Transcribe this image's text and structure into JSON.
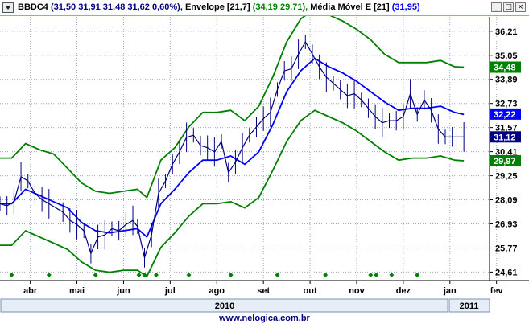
{
  "legend": {
    "ticker": "BBDC4",
    "quote": "(31,50  31,91  31,48  31,62  0,60%),",
    "envelope": "Envelope [21,7]",
    "envelope_vals": "(34,19  29,71),",
    "ma": "Média Móvel E [21]",
    "ma_vals": "(31,95)"
  },
  "window_buttons": {
    "minimize": "_",
    "maximize": "□",
    "close": "×"
  },
  "footer_url": "www.nelogica.com.br",
  "colors": {
    "price": "#000080",
    "envelope": "#008000",
    "ma": "#0000ff",
    "event_marker": "#008000",
    "current_price_badge": "#000080",
    "ma_badge": "#0000ff",
    "envelope_badge": "#008000"
  },
  "chart_data": {
    "type": "line",
    "grid": true,
    "y_ticks": [
      "36,21",
      "35,05",
      "33,89",
      "32,73",
      "31,57",
      "30,41",
      "29,25",
      "28,09",
      "26,93",
      "25,77",
      "24,61"
    ],
    "ylim": [
      24.2,
      36.9
    ],
    "x_months": [
      "abr",
      "mai",
      "jun",
      "jul",
      "ago",
      "set",
      "out",
      "nov",
      "dez",
      "jan",
      "fev"
    ],
    "x_month_pos": [
      1.0,
      2.0,
      3.0,
      4.0,
      5.0,
      6.0,
      7.0,
      8.0,
      9.0,
      10.0,
      11.0
    ],
    "xlim": [
      0.35,
      10.85
    ],
    "x_years": [
      "2010",
      "2011"
    ],
    "year_boundary": 9.97,
    "badges": [
      {
        "label": "34,48",
        "value": 34.48,
        "kind": "envelope"
      },
      {
        "label": "32,22",
        "value": 32.22,
        "kind": "ma"
      },
      {
        "label": "31,12",
        "value": 31.12,
        "kind": "price"
      },
      {
        "label": "29,97",
        "value": 29.97,
        "kind": "envelope"
      }
    ],
    "event_markers": [
      0.6,
      1.4,
      2.4,
      3.33,
      3.45,
      3.7,
      4.4,
      5.3,
      6.3,
      7.33,
      8.3,
      8.42,
      8.75,
      9.3
    ],
    "series": [
      {
        "name": "Média Móvel E [21]",
        "kind": "ma",
        "x": [
          0.35,
          0.6,
          0.9,
          1.2,
          1.5,
          1.8,
          2.1,
          2.4,
          2.7,
          3.0,
          3.3,
          3.5,
          3.8,
          4.1,
          4.4,
          4.7,
          5.0,
          5.3,
          5.6,
          5.9,
          6.2,
          6.5,
          6.8,
          7.1,
          7.4,
          7.7,
          8.0,
          8.3,
          8.6,
          8.9,
          9.2,
          9.5,
          9.8,
          10.1,
          10.3
        ],
        "values": [
          27.9,
          27.9,
          28.6,
          28.3,
          28.0,
          27.7,
          27.0,
          26.6,
          26.5,
          26.6,
          26.7,
          26.3,
          27.9,
          28.6,
          29.4,
          30.0,
          30.0,
          30.2,
          29.8,
          30.4,
          31.7,
          33.3,
          34.3,
          34.9,
          34.5,
          34.2,
          33.8,
          33.3,
          32.8,
          32.4,
          32.5,
          32.5,
          32.6,
          32.3,
          32.2
        ]
      },
      {
        "name": "Envelope superior",
        "kind": "envelope",
        "x": [
          0.35,
          0.6,
          0.9,
          1.2,
          1.5,
          1.8,
          2.1,
          2.4,
          2.7,
          3.0,
          3.3,
          3.5,
          3.8,
          4.1,
          4.4,
          4.7,
          5.0,
          5.3,
          5.6,
          5.9,
          6.2,
          6.5,
          6.8,
          7.1,
          7.4,
          7.7,
          8.0,
          8.3,
          8.6,
          8.9,
          9.2,
          9.5,
          9.8,
          10.1,
          10.3
        ],
        "values": [
          30.1,
          30.1,
          30.8,
          30.5,
          30.3,
          29.6,
          28.9,
          28.5,
          28.4,
          28.5,
          28.6,
          28.2,
          30.0,
          30.6,
          31.6,
          32.3,
          32.3,
          32.4,
          31.9,
          32.6,
          34.0,
          35.7,
          36.8,
          37.3,
          37.0,
          36.7,
          36.3,
          35.8,
          35.1,
          34.7,
          34.7,
          34.7,
          34.8,
          34.5,
          34.48
        ]
      },
      {
        "name": "Envelope inferior",
        "kind": "envelope",
        "x": [
          0.35,
          0.6,
          0.9,
          1.2,
          1.5,
          1.8,
          2.1,
          2.4,
          2.7,
          3.0,
          3.3,
          3.5,
          3.8,
          4.1,
          4.4,
          4.7,
          5.0,
          5.3,
          5.6,
          5.9,
          6.2,
          6.5,
          6.8,
          7.1,
          7.4,
          7.7,
          8.0,
          8.3,
          8.6,
          8.9,
          9.2,
          9.5,
          9.8,
          10.1,
          10.3
        ],
        "values": [
          25.9,
          25.9,
          26.6,
          26.3,
          26.0,
          25.7,
          25.1,
          24.7,
          24.6,
          24.7,
          24.7,
          24.4,
          25.8,
          26.5,
          27.3,
          27.9,
          27.9,
          28.0,
          27.7,
          28.2,
          29.5,
          30.9,
          31.9,
          32.4,
          32.1,
          31.8,
          31.4,
          30.9,
          30.4,
          30.0,
          30.1,
          30.1,
          30.2,
          30.0,
          29.97
        ]
      },
      {
        "name": "BBDC4",
        "kind": "price",
        "x": [
          0.35,
          0.5,
          0.65,
          0.8,
          0.95,
          1.1,
          1.25,
          1.4,
          1.55,
          1.7,
          1.85,
          2.0,
          2.15,
          2.3,
          2.45,
          2.6,
          2.75,
          2.9,
          3.05,
          3.2,
          3.3,
          3.45,
          3.6,
          3.75,
          3.9,
          4.05,
          4.2,
          4.35,
          4.5,
          4.65,
          4.8,
          4.95,
          5.1,
          5.25,
          5.4,
          5.55,
          5.7,
          5.85,
          6.0,
          6.15,
          6.3,
          6.45,
          6.6,
          6.75,
          6.9,
          7.05,
          7.2,
          7.35,
          7.5,
          7.65,
          7.8,
          7.95,
          8.1,
          8.25,
          8.4,
          8.55,
          8.7,
          8.85,
          9.0,
          9.15,
          9.3,
          9.45,
          9.6,
          9.75,
          9.9,
          10.05,
          10.15,
          10.3
        ],
        "values": [
          27.9,
          27.8,
          28.0,
          29.2,
          29.0,
          28.4,
          28.1,
          27.9,
          27.7,
          27.5,
          27.1,
          26.9,
          26.6,
          25.5,
          26.3,
          26.4,
          26.7,
          26.6,
          26.9,
          27.1,
          26.8,
          25.3,
          26.4,
          28.4,
          29.0,
          29.8,
          30.4,
          31.1,
          31.2,
          30.7,
          30.6,
          30.4,
          30.9,
          29.4,
          29.9,
          30.6,
          31.2,
          31.6,
          32.0,
          32.3,
          33.4,
          34.3,
          34.4,
          35.1,
          35.7,
          35.1,
          34.5,
          34.0,
          33.7,
          33.4,
          33.1,
          33.2,
          32.9,
          32.5,
          32.1,
          31.8,
          31.9,
          31.9,
          32.1,
          33.2,
          32.2,
          32.9,
          32.4,
          31.5,
          31.12,
          31.12,
          31.12,
          31.12
        ]
      }
    ]
  }
}
